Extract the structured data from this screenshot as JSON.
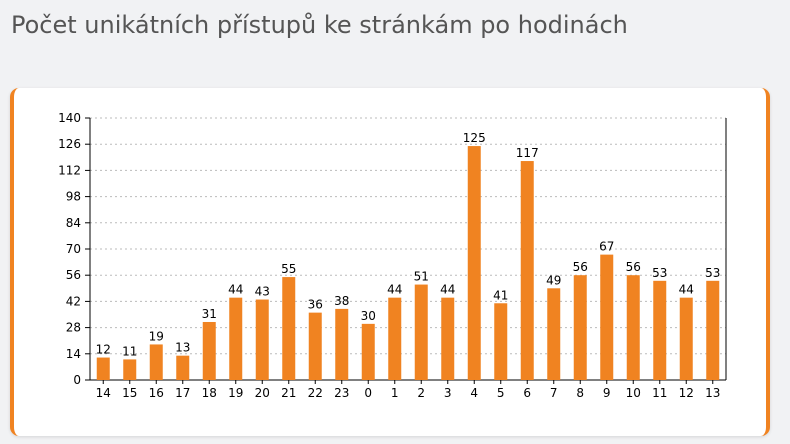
{
  "page": {
    "title": "Počet unikátních přístupů ke stránkám po hodinách"
  },
  "colors": {
    "accent": "#f08321",
    "bar": "#f08321",
    "background": "#f1f2f4",
    "card": "#ffffff"
  },
  "chart_data": {
    "type": "bar",
    "title": "",
    "xlabel": "",
    "ylabel": "",
    "categories": [
      "14",
      "15",
      "16",
      "17",
      "18",
      "19",
      "20",
      "21",
      "22",
      "23",
      "0",
      "1",
      "2",
      "3",
      "4",
      "5",
      "6",
      "7",
      "8",
      "9",
      "10",
      "11",
      "12",
      "13"
    ],
    "values": [
      12,
      11,
      19,
      13,
      31,
      44,
      43,
      55,
      36,
      38,
      30,
      44,
      51,
      44,
      125,
      41,
      117,
      49,
      56,
      67,
      56,
      53,
      44,
      53
    ],
    "ylim": [
      0,
      140
    ],
    "yticks": [
      0,
      14,
      28,
      42,
      56,
      70,
      84,
      98,
      112,
      126,
      140
    ],
    "grid": true,
    "data_labels": true,
    "legend": "none"
  }
}
